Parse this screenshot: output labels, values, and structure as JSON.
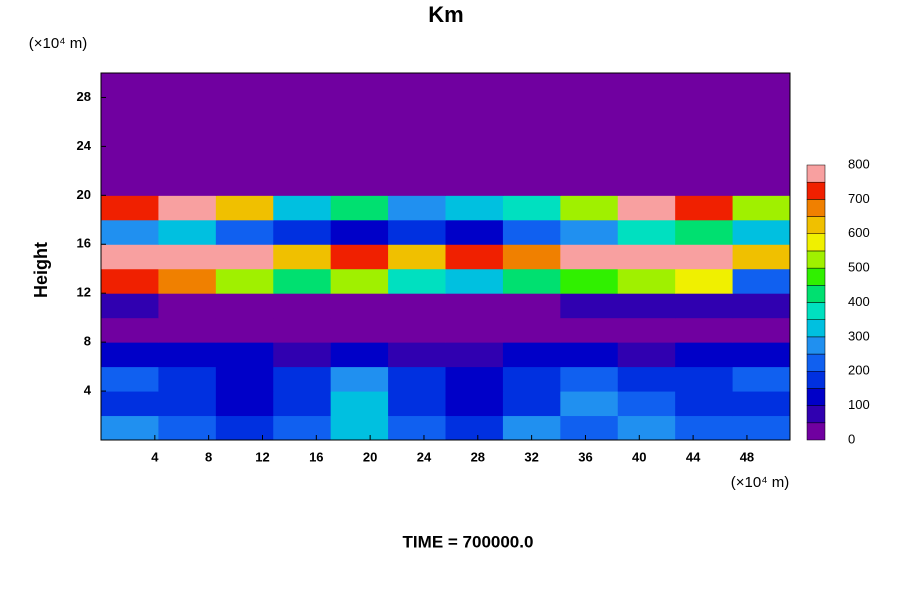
{
  "chart_data": {
    "type": "heatmap",
    "title": "Km",
    "ylabel": "Height",
    "xunit": "(×10⁴ m)",
    "yunit": "(×10⁴ m)",
    "footer": "TIME = 700000.0",
    "xlim": [
      0,
      51.2
    ],
    "ylim": [
      0,
      30
    ],
    "xticks": [
      4,
      8,
      12,
      16,
      20,
      24,
      28,
      32,
      36,
      40,
      44,
      48
    ],
    "yticks": [
      4,
      8,
      12,
      16,
      20,
      24,
      28
    ],
    "x_edges": [
      0,
      4.2667,
      8.5333,
      12.8,
      17.0667,
      21.3333,
      25.6,
      29.8667,
      34.1333,
      38.4,
      42.6667,
      46.9333,
      51.2
    ],
    "y_edges": [
      0,
      2,
      4,
      6,
      8,
      10,
      12,
      14,
      16,
      18,
      20,
      22,
      24,
      26,
      28,
      30
    ],
    "z": [
      [
        250,
        200,
        180,
        200,
        300,
        200,
        180,
        250,
        220,
        280,
        200,
        220
      ],
      [
        180,
        150,
        120,
        150,
        300,
        150,
        120,
        150,
        250,
        200,
        150,
        180
      ],
      [
        200,
        150,
        120,
        150,
        250,
        150,
        120,
        180,
        220,
        180,
        150,
        200
      ],
      [
        120,
        100,
        100,
        80,
        120,
        60,
        80,
        100,
        120,
        80,
        100,
        120
      ],
      [
        20,
        0,
        0,
        0,
        0,
        0,
        0,
        0,
        0,
        0,
        0,
        20
      ],
      [
        50,
        0,
        0,
        0,
        0,
        0,
        0,
        0,
        50,
        50,
        50,
        50
      ],
      [
        700,
        650,
        500,
        400,
        500,
        350,
        300,
        400,
        450,
        500,
        550,
        200
      ],
      [
        800,
        800,
        750,
        600,
        700,
        600,
        700,
        650,
        750,
        800,
        800,
        600
      ],
      [
        250,
        300,
        200,
        150,
        100,
        150,
        100,
        200,
        250,
        350,
        400,
        300
      ],
      [
        700,
        750,
        600,
        300,
        400,
        250,
        300,
        350,
        500,
        750,
        700,
        500
      ],
      [
        0,
        0,
        0,
        0,
        0,
        0,
        0,
        0,
        0,
        0,
        0,
        0
      ],
      [
        0,
        0,
        0,
        0,
        0,
        0,
        0,
        0,
        0,
        0,
        0,
        0
      ],
      [
        0,
        0,
        0,
        0,
        0,
        0,
        0,
        0,
        0,
        0,
        0,
        0
      ],
      [
        0,
        0,
        0,
        0,
        0,
        0,
        0,
        0,
        0,
        0,
        0,
        0
      ],
      [
        0,
        0,
        0,
        0,
        0,
        0,
        0,
        0,
        0,
        0,
        0,
        0
      ]
    ],
    "clevels": [
      0,
      50,
      100,
      150,
      200,
      250,
      300,
      350,
      400,
      450,
      500,
      550,
      600,
      650,
      700,
      750,
      800
    ],
    "colors": [
      "#7000a0",
      "#3000b0",
      "#0000c8",
      "#0030e0",
      "#1060f0",
      "#2090f0",
      "#00c0e0",
      "#00e0c0",
      "#00e070",
      "#30f000",
      "#a0f000",
      "#f0f000",
      "#f0c000",
      "#f08000",
      "#f02000",
      "#f8a0a0"
    ],
    "cticks": [
      0,
      100,
      200,
      300,
      400,
      500,
      600,
      700,
      800
    ]
  }
}
